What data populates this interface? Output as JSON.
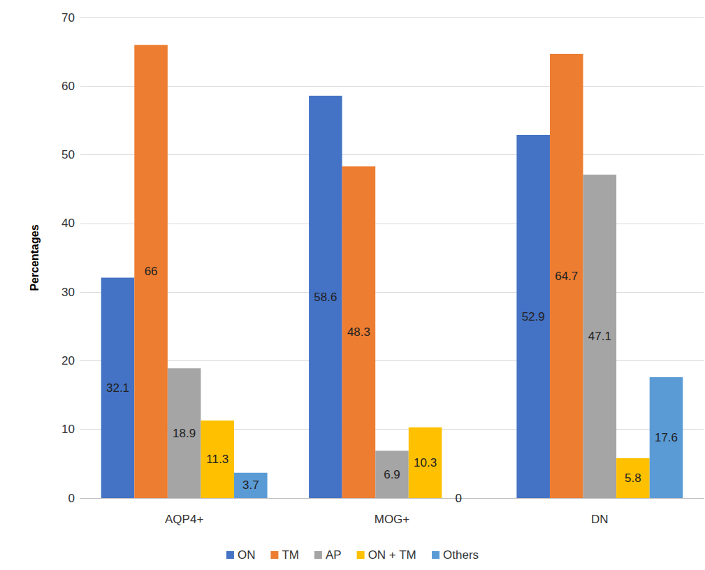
{
  "chart_data": {
    "type": "bar",
    "y_label": "Percentages",
    "categories": [
      "AQP4+",
      "MOG+",
      "DN"
    ],
    "series": [
      {
        "name": "ON",
        "color": "#4472c4",
        "values": [
          32.1,
          58.6,
          52.9
        ]
      },
      {
        "name": "TM",
        "color": "#ed7d31",
        "values": [
          66,
          48.3,
          64.7
        ]
      },
      {
        "name": "AP",
        "color": "#a5a5a5",
        "values": [
          18.9,
          6.9,
          47.1
        ]
      },
      {
        "name": "ON + TM",
        "color": "#ffc000",
        "values": [
          11.3,
          10.3,
          5.8
        ]
      },
      {
        "name": "Others",
        "color": "#5b9bd5",
        "values": [
          3.7,
          0,
          17.6
        ]
      }
    ],
    "ylim": [
      0,
      70
    ],
    "yticks": [
      0,
      10,
      20,
      30,
      40,
      50,
      60,
      70
    ],
    "grid": true,
    "legend": "bottom",
    "data_labels": true
  }
}
